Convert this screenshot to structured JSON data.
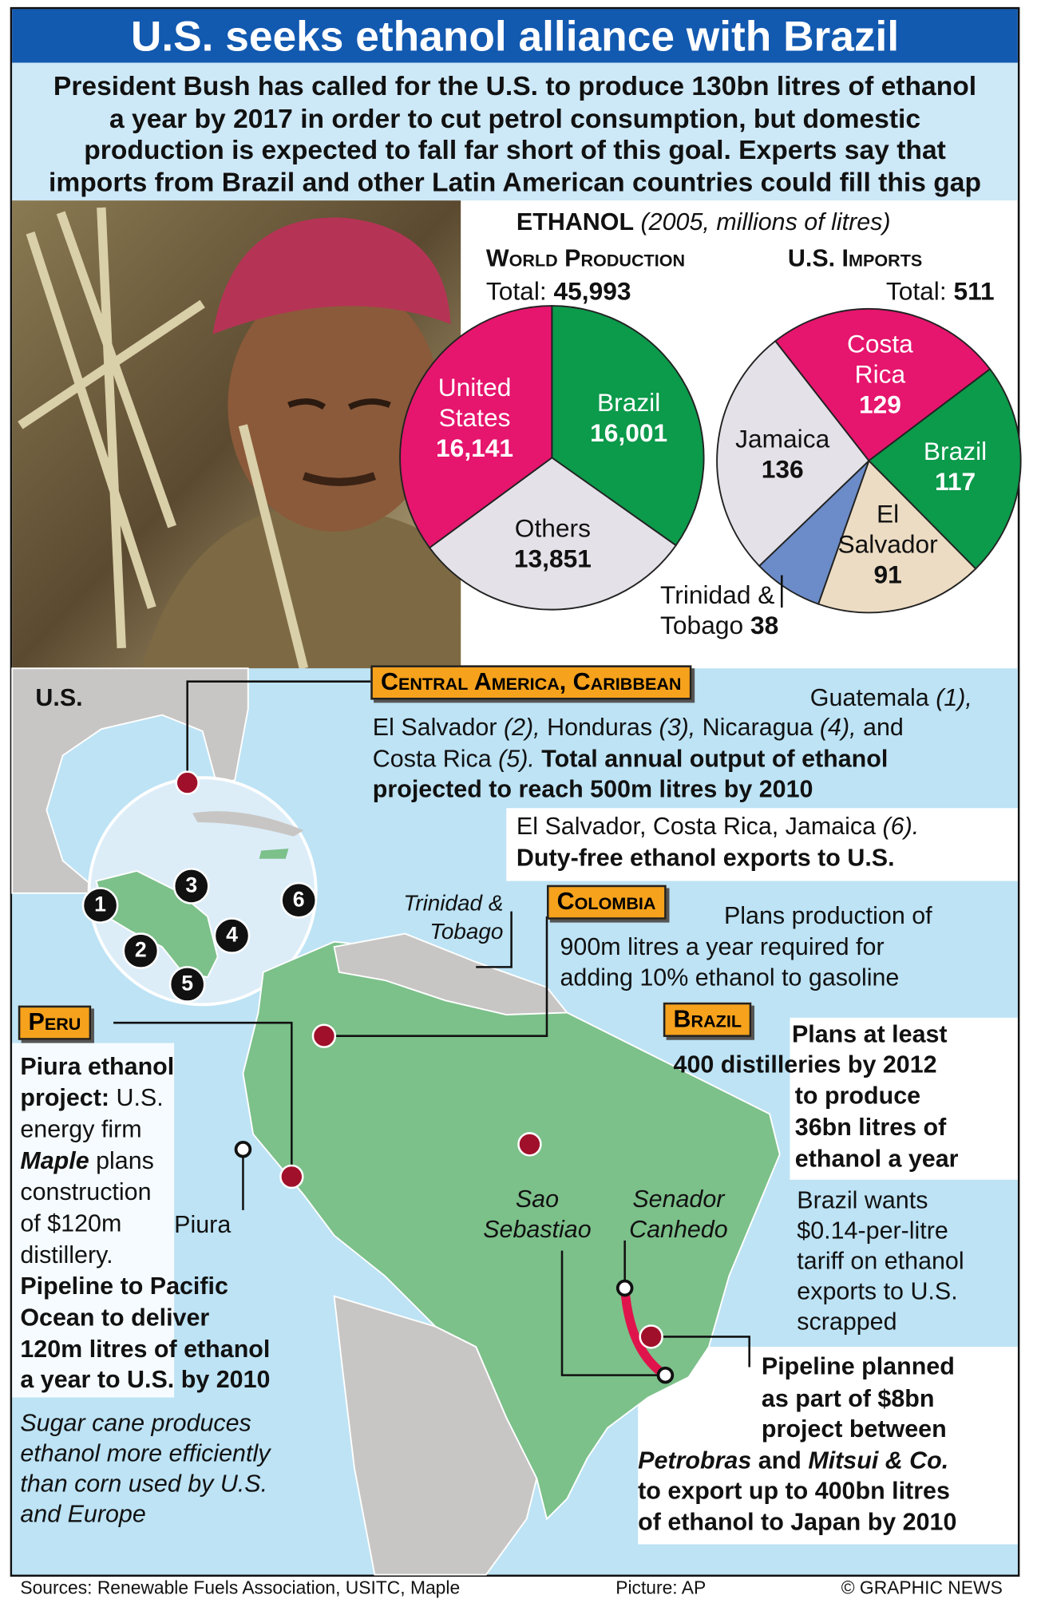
{
  "title": "U.S. seeks ethanol alliance with Brazil",
  "intro": [
    "President Bush has called for the U.S. to produce 130bn litres of ethanol",
    "a year by 2017 in order to cut petrol consumption, but domestic",
    "production is expected to fall far short of this goal. Experts say that",
    "imports from Brazil and other Latin American countries could fill this gap"
  ],
  "ethanol_heading": {
    "label": "ETHANOL",
    "note": "(2005, millions of litres)"
  },
  "chart_data": [
    {
      "type": "pie",
      "title": "World Production",
      "total_text": "Total:",
      "total": {
        "value": 45993,
        "label": "45,993"
      },
      "categories": [
        "Brazil",
        "Others",
        "United States"
      ],
      "values": [
        16001,
        13851,
        16141
      ],
      "value_labels": [
        "16,001",
        "13,851",
        "16,141"
      ],
      "colors": [
        "#0c9a4b",
        "#e4e2e8",
        "#e6156d"
      ]
    },
    {
      "type": "pie",
      "title": "U.S. Imports",
      "total_text": "Total:",
      "total": 511,
      "categories": [
        "Costa Rica",
        "Brazil",
        "El Salvador",
        "Trinidad & Tobago",
        "Jamaica"
      ],
      "values": [
        129,
        117,
        91,
        38,
        136
      ],
      "colors": [
        "#e6156d",
        "#0c9a4b",
        "#ecdcc3",
        "#6b8cc8",
        "#e4e2e8"
      ]
    }
  ],
  "map": {
    "us_label": "U.S.",
    "inset_numbers": [
      "1",
      "2",
      "3",
      "4",
      "5",
      "6"
    ],
    "trinidad": "Trinidad & Tobago",
    "piura": "Piura",
    "sao_sebastiao": "Sao Sebastiao",
    "senador_canhedo": "Senador Canhedo"
  },
  "central_america": {
    "heading": "Central America, Caribbean",
    "lines": [
      [
        "Guatemala ",
        "(1),"
      ],
      [
        "El Salvador ",
        "(2),",
        " Honduras ",
        "(3),",
        " Nicaragua ",
        "(4),",
        " and"
      ],
      [
        "Costa Rica ",
        "(5).",
        " Total annual output of ethanol"
      ],
      [
        "projected to reach 500m litres by 2010"
      ]
    ]
  },
  "duty_free": [
    [
      "El Salvador, Costa Rica, Jamaica ",
      "(6)."
    ],
    [
      "Duty-free ethanol exports to U.S."
    ]
  ],
  "colombia": {
    "heading": "Colombia",
    "lines": [
      "Plans production of",
      "900m litres a year required for",
      "adding 10% ethanol to gasoline"
    ]
  },
  "brazil": {
    "heading": "Brazil",
    "lines": [
      "Plans at least",
      "400 distilleries by 2012",
      "to produce",
      "36bn litres of",
      "ethanol a year"
    ],
    "tariff": [
      "Brazil wants",
      "$0.14-per-litre",
      "tariff on ethanol",
      "exports to U.S.",
      "scrapped"
    ],
    "pipeline": [
      [
        "Pipeline planned"
      ],
      [
        "as part of $8bn"
      ],
      [
        "project between"
      ],
      [
        "Petrobras",
        " and ",
        "Mitsui & Co."
      ],
      [
        "to export up to 400bn litres"
      ],
      [
        "of ethanol to Japan by 2010"
      ]
    ]
  },
  "peru": {
    "heading": "Peru",
    "lines": [
      [
        "Piura ethanol"
      ],
      [
        "project:",
        " U.S."
      ],
      [
        "energy firm"
      ],
      [
        "Maple",
        " plans"
      ],
      [
        "construction"
      ],
      [
        "of $120m"
      ],
      [
        "distillery."
      ],
      [
        "Pipeline to Pacific"
      ],
      [
        "Ocean to deliver"
      ],
      [
        "120m litres of ethanol"
      ],
      [
        "a year to U.S. by 2010"
      ]
    ]
  },
  "sugar_cane": [
    "Sugar cane produces",
    "ethanol more efficiently",
    "than corn used by U.S.",
    "and Europe"
  ],
  "footer": {
    "sources": "Sources: Renewable Fuels Association, USITC, Maple",
    "picture": "Picture: AP",
    "credit": "© GRAPHIC NEWS"
  }
}
